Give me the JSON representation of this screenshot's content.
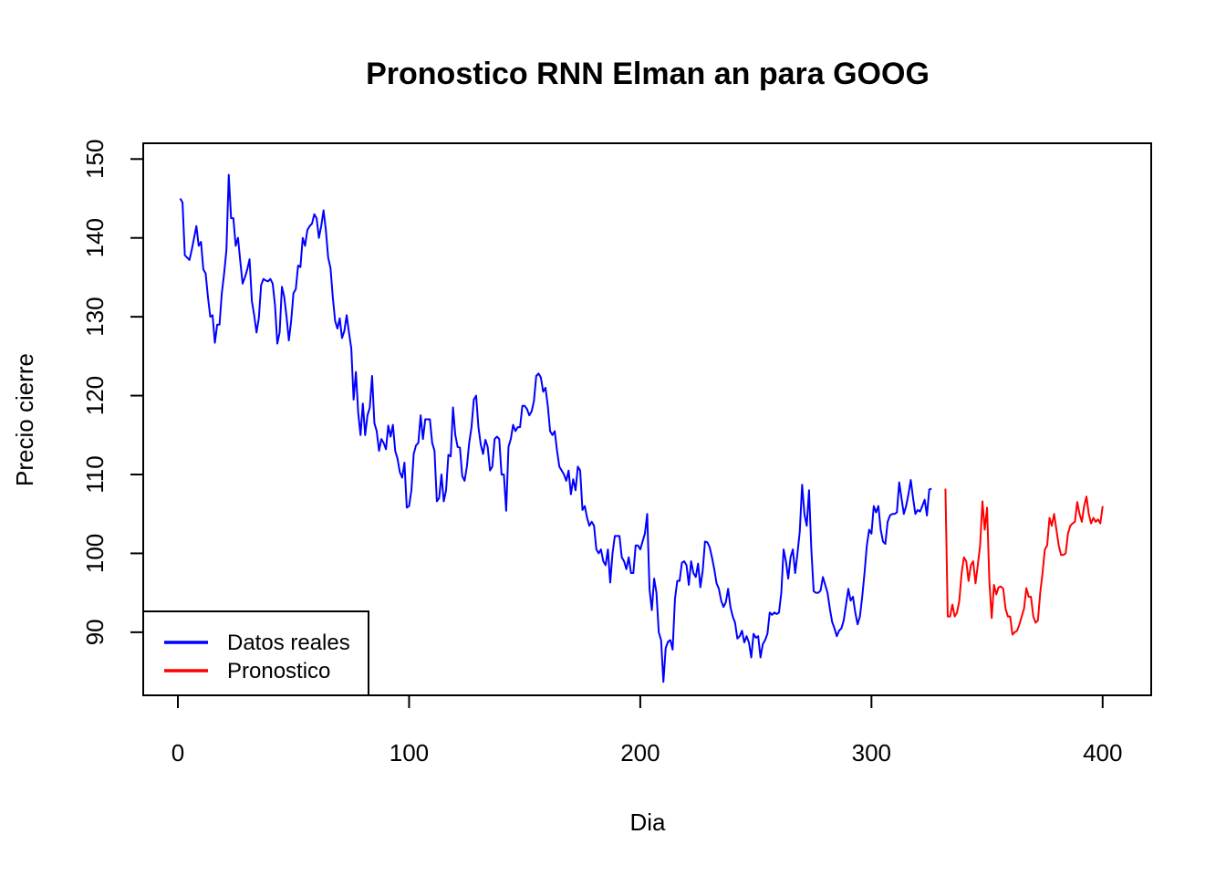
{
  "colors": {
    "actual": "#0000FF",
    "forecast": "#FF0000",
    "axis": "#000000",
    "background": "#FFFFFF"
  },
  "chart_data": {
    "type": "line",
    "title": "Pronostico RNN Elman an para  GOOG",
    "xlabel": "Dia",
    "ylabel": "Precio cierre",
    "xlim": [
      -15,
      421
    ],
    "ylim": [
      82,
      152
    ],
    "xticks": [
      0,
      100,
      200,
      300,
      400
    ],
    "xtick_labels": [
      "0",
      "100",
      "200",
      "300",
      "400"
    ],
    "yticks": [
      90,
      100,
      110,
      120,
      130,
      140,
      150
    ],
    "ytick_labels": [
      "90",
      "100",
      "110",
      "120",
      "130",
      "140",
      "150"
    ],
    "grid": false,
    "legend": {
      "position": "bottom-left",
      "entries": [
        {
          "label": "Datos reales",
          "color": "#0000FF"
        },
        {
          "label": "Pronostico",
          "color": "#FF0000"
        }
      ]
    },
    "series": [
      {
        "name": "Datos reales",
        "color": "#0000FF",
        "x_start": 1,
        "values": [
          145,
          144.5,
          137.8,
          137.5,
          137.2,
          138.5,
          140,
          141.5,
          139,
          139.5,
          136,
          135.5,
          132.5,
          130,
          130.2,
          126.7,
          129,
          129,
          133,
          135.5,
          138.5,
          148,
          142.5,
          142.5,
          139,
          140,
          137,
          134.2,
          135,
          136,
          137.3,
          132,
          130.2,
          128,
          129.8,
          134,
          134.8,
          134.6,
          134.5,
          134.8,
          134.2,
          131.5,
          126.6,
          128,
          133.8,
          132.5,
          130,
          127,
          129.5,
          133,
          133.5,
          136.5,
          136.3,
          140,
          139,
          141,
          141.5,
          141.8,
          143,
          142.5,
          140,
          141.5,
          143.5,
          141,
          137.5,
          136.2,
          132.5,
          129.5,
          128.5,
          129.8,
          127.3,
          128.2,
          130.2,
          128,
          126,
          119.5,
          123,
          117.8,
          115,
          119,
          115,
          117.5,
          118.5,
          122.5,
          116.5,
          115.5,
          113,
          114.5,
          114,
          113.2,
          116.2,
          114.8,
          116.3,
          113,
          112,
          110.3,
          109.6,
          111.5,
          105.8,
          106,
          108,
          112.6,
          113.7,
          114,
          117.5,
          114.5,
          117,
          117,
          117,
          114,
          113,
          106.6,
          107,
          110,
          106.6,
          108,
          112.5,
          112.3,
          118.5,
          115,
          113.5,
          113.4,
          109.8,
          109.2,
          111,
          114,
          116,
          119.5,
          120,
          116,
          113.8,
          112.6,
          114.4,
          113.5,
          110.5,
          111,
          114.5,
          114.8,
          114.5,
          110,
          110,
          105.4,
          113.5,
          114.5,
          116.3,
          115.5,
          116,
          116,
          118.7,
          118.7,
          118.3,
          117.5,
          118,
          119.3,
          122.5,
          122.8,
          122.3,
          120.5,
          121,
          118.7,
          115.5,
          115,
          115.5,
          113,
          111,
          110.5,
          110,
          109.2,
          110.5,
          107.5,
          109.4,
          108,
          111,
          110.5,
          105.5,
          106,
          104.5,
          103.5,
          104,
          103.5,
          100.5,
          100,
          100.5,
          99,
          98.5,
          100.5,
          96.3,
          100,
          102.2,
          102.2,
          102.2,
          99.5,
          99,
          98,
          99.5,
          97.5,
          97.5,
          101,
          101,
          100.5,
          101.5,
          102.5,
          105,
          95.5,
          92.8,
          96.8,
          95,
          90,
          89,
          83.7,
          88,
          88.8,
          89,
          87.8,
          94.2,
          96.5,
          96.5,
          98.8,
          99,
          98.5,
          96,
          99,
          97.5,
          97,
          98.7,
          95.7,
          97.8,
          101.5,
          101.4,
          100.8,
          99.5,
          98,
          96.2,
          95.5,
          94,
          93.2,
          93.8,
          95.5,
          93.2,
          92,
          91.2,
          89.2,
          89.5,
          90.2,
          88.7,
          89.5,
          88.7,
          86.8,
          89.8,
          89.3,
          89.5,
          86.8,
          88.5,
          89,
          89.8,
          92.5,
          92.2,
          92.5,
          92.3,
          92.5,
          95,
          100.5,
          99,
          96.8,
          99.5,
          100.5,
          97.5,
          100,
          102.8,
          108.7,
          105,
          103.5,
          108,
          100.5,
          95.2,
          95,
          95,
          95.3,
          97,
          96,
          95,
          93,
          91.3,
          90.5,
          89.5,
          90.2,
          90.5,
          91.5,
          93.5,
          95.5,
          94,
          94.5,
          92.5,
          91,
          92,
          94.5,
          97.5,
          101,
          103,
          102.5,
          106,
          105.2,
          106,
          103,
          101.5,
          101.2,
          104,
          104.8,
          105,
          105,
          105.2,
          109,
          107,
          105,
          106,
          107.5,
          109.3,
          107,
          105,
          105.5,
          105.3,
          106,
          106.8,
          104.8,
          108.1,
          108.2
        ]
      },
      {
        "name": "Pronostico",
        "color": "#FF0000",
        "x_start": 332,
        "values": [
          108.2,
          92,
          92,
          93.5,
          92,
          92.5,
          94,
          97.5,
          99.5,
          99,
          96.5,
          98.5,
          99,
          96.2,
          98.5,
          101,
          106.6,
          103,
          105.8,
          96.5,
          91.8,
          96,
          94.8,
          95.7,
          95.8,
          95.5,
          93,
          92,
          92,
          89.7,
          90,
          90.2,
          91,
          92,
          93,
          95.6,
          94.5,
          94.5,
          92,
          91.2,
          91.5,
          95,
          97.5,
          100.5,
          101,
          104.5,
          103.5,
          105,
          103,
          101,
          99.8,
          99.8,
          100,
          102.5,
          103.5,
          103.8,
          104,
          106.5,
          105,
          104,
          106,
          107.2,
          105,
          103.8,
          104.5,
          104,
          104.3,
          103.8,
          106
        ]
      }
    ]
  }
}
